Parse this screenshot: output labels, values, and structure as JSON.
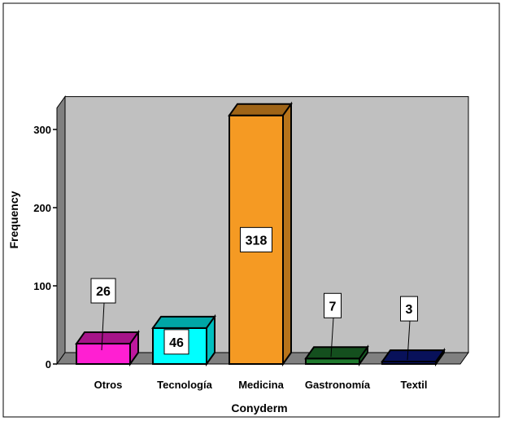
{
  "chart_data": {
    "type": "bar",
    "xlabel": "Conyderm",
    "ylabel": "Frequency",
    "categories": [
      "Otros",
      "Tecnología",
      "Medicina",
      "Gastronomía",
      "Textil"
    ],
    "values": [
      26,
      46,
      318,
      7,
      3
    ],
    "data_labels": [
      "26",
      "46",
      "318",
      "7",
      "3"
    ],
    "colors": [
      "#ff1fd2",
      "#00ffff",
      "#f59a23",
      "#1f7a2e",
      "#0c1a8a"
    ],
    "ylim": [
      0,
      340
    ],
    "yticks": [
      0,
      100,
      200,
      300
    ],
    "ytick_labels": [
      "0",
      "100",
      "200",
      "300"
    ],
    "grid": false,
    "three_d": true,
    "plot_background": "#c0c0c0"
  }
}
